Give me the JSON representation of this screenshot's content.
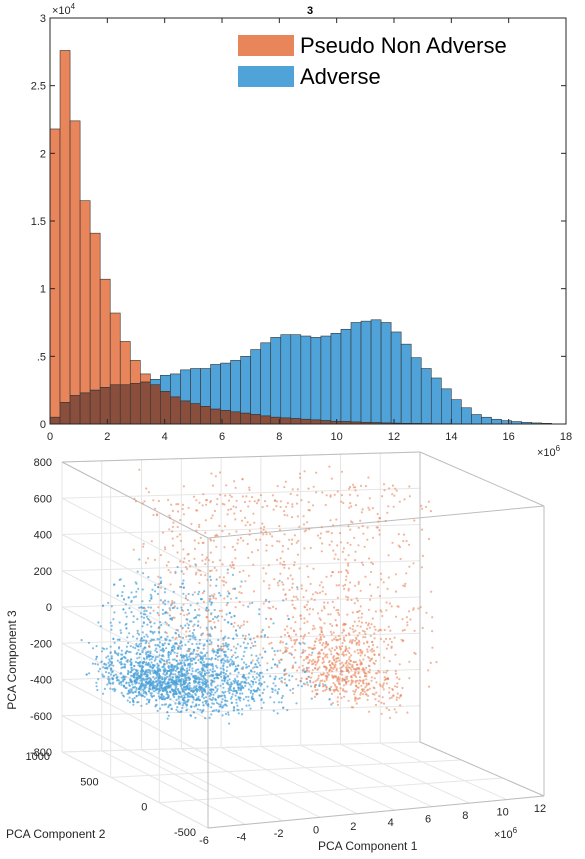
{
  "colors": {
    "pseudo_non_adverse": "#e8855b",
    "adverse": "#4fa3d8",
    "overlap": "#8a4e3c"
  },
  "chart_data": [
    {
      "type": "bar",
      "subtype": "histogram",
      "title": "3",
      "xlabel": "",
      "ylabel": "",
      "x_exponent": "×10^6",
      "y_exponent": "×10^4",
      "x_exponent_base": "×10",
      "x_exponent_power": "6",
      "y_exponent_base": "×10",
      "y_exponent_power": "4",
      "xlim": [
        0,
        18
      ],
      "ylim": [
        0,
        3
      ],
      "x_ticks": [
        0,
        2,
        4,
        6,
        8,
        10,
        12,
        14,
        16,
        18
      ],
      "y_ticks": [
        0,
        0.5,
        1,
        1.5,
        2,
        2.5,
        3
      ],
      "y_tick_labels": [
        "0",
        ".5",
        "1",
        "1.5",
        "2",
        "2.5",
        "3"
      ],
      "legend_position": "top-right",
      "grid": false,
      "bin_edges_start": 0,
      "bin_width": 0.35,
      "series": [
        {
          "name": "Pseudo Non Adverse",
          "values": [
            2.18,
            2.76,
            2.24,
            1.65,
            1.41,
            1.07,
            0.82,
            0.61,
            0.47,
            0.37,
            0.29,
            0.24,
            0.2,
            0.17,
            0.15,
            0.13,
            0.11,
            0.1,
            0.09,
            0.08,
            0.07,
            0.06,
            0.05,
            0.045,
            0.04,
            0.035,
            0.03,
            0.025,
            0.02,
            0.018,
            0.015,
            0.012,
            0.01,
            0.008,
            0.006,
            0.005,
            0.004,
            0.003,
            0.002,
            0.002,
            0.001,
            0.001,
            0.001,
            0.001,
            0.0,
            0.0,
            0.0,
            0.0,
            0.0,
            0.0
          ]
        },
        {
          "name": "Adverse",
          "values": [
            0.05,
            0.16,
            0.21,
            0.23,
            0.25,
            0.27,
            0.29,
            0.29,
            0.3,
            0.31,
            0.33,
            0.36,
            0.37,
            0.4,
            0.41,
            0.41,
            0.44,
            0.45,
            0.47,
            0.5,
            0.55,
            0.6,
            0.64,
            0.66,
            0.66,
            0.65,
            0.64,
            0.65,
            0.67,
            0.7,
            0.75,
            0.76,
            0.77,
            0.75,
            0.68,
            0.59,
            0.49,
            0.41,
            0.34,
            0.26,
            0.18,
            0.12,
            0.07,
            0.05,
            0.035,
            0.025,
            0.018,
            0.012,
            0.008,
            0.005
          ]
        }
      ]
    },
    {
      "type": "scatter",
      "subtype": "scatter3d",
      "title": "",
      "xlabel": "PCA Component 1",
      "ylabel": "PCA Component 2",
      "zlabel": "PCA Component 3",
      "x_exponent_base": "×10",
      "x_exponent_power": "6",
      "xlim": [
        -6,
        12
      ],
      "ylim": [
        -500,
        1000
      ],
      "zlim": [
        -800,
        800
      ],
      "x_ticks": [
        -6,
        -4,
        -2,
        0,
        2,
        4,
        6,
        8,
        10,
        12
      ],
      "y_ticks": [
        -500,
        0,
        500,
        1000
      ],
      "z_ticks": [
        -800,
        -600,
        -400,
        -200,
        0,
        200,
        400,
        600,
        800
      ],
      "grid": true,
      "series": [
        {
          "name": "Pseudo Non Adverse",
          "description_points": 1400
        },
        {
          "name": "Adverse",
          "description_points": 2200
        }
      ]
    }
  ],
  "legend": {
    "items": [
      {
        "label": "Pseudo Non Adverse"
      },
      {
        "label": "Adverse"
      }
    ]
  }
}
